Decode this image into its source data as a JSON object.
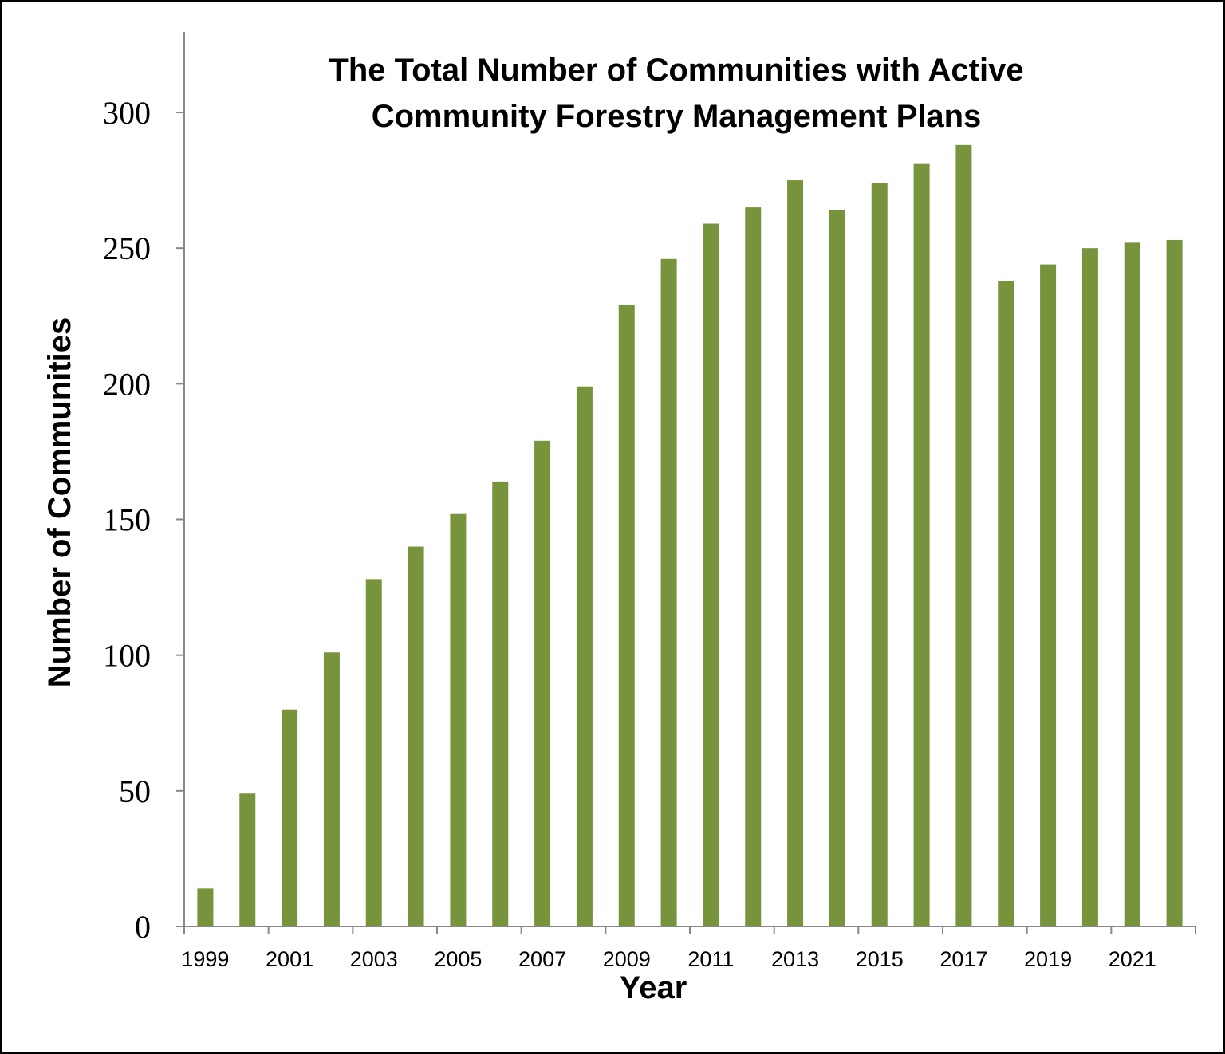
{
  "chart_data": {
    "type": "bar",
    "title": "The Total Number of Communities with Active Community Forestry Management Plans",
    "title_lines": [
      "The Total Number of Communities with Active",
      "Community Forestry Management Plans"
    ],
    "xlabel": "Year",
    "ylabel": "Number of Communities",
    "categories": [
      "1999",
      "2000",
      "2001",
      "2002",
      "2003",
      "2004",
      "2005",
      "2006",
      "2007",
      "2008",
      "2009",
      "2010",
      "2011",
      "2012",
      "2013",
      "2014",
      "2015",
      "2016",
      "2017",
      "2018",
      "2019",
      "2020",
      "2021",
      "2022"
    ],
    "x_tick_labels": [
      "1999",
      "2001",
      "2003",
      "2005",
      "2007",
      "2009",
      "2011",
      "2013",
      "2015",
      "2017",
      "2019",
      "2021"
    ],
    "values": [
      14,
      49,
      80,
      101,
      128,
      140,
      152,
      164,
      179,
      199,
      229,
      246,
      259,
      265,
      275,
      264,
      274,
      281,
      288,
      238,
      244,
      250,
      252,
      253
    ],
    "ylim": [
      0,
      330
    ],
    "y_ticks": [
      0,
      50,
      100,
      150,
      200,
      250,
      300
    ],
    "grid": false,
    "legend": "none",
    "bar_color": "#77933c"
  }
}
